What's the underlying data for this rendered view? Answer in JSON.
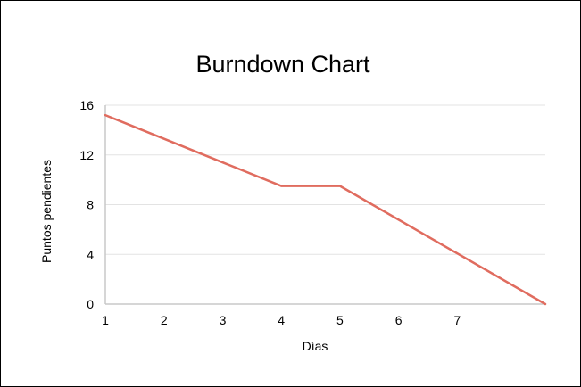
{
  "chart_data": {
    "type": "line",
    "title": "Burndown Chart",
    "xlabel": "Días",
    "ylabel": "Puntos pendientes",
    "x_ticks": [
      "1",
      "2",
      "3",
      "4",
      "5",
      "6",
      "7"
    ],
    "y_ticks": [
      "0",
      "4",
      "8",
      "12",
      "16"
    ],
    "xlim": [
      1,
      8.5
    ],
    "ylim": [
      0,
      16
    ],
    "grid": true,
    "series": [
      {
        "color": "#e06c5f",
        "x": [
          1,
          4,
          5,
          8.5
        ],
        "y": [
          15.2,
          9.5,
          9.5,
          0
        ]
      }
    ]
  }
}
